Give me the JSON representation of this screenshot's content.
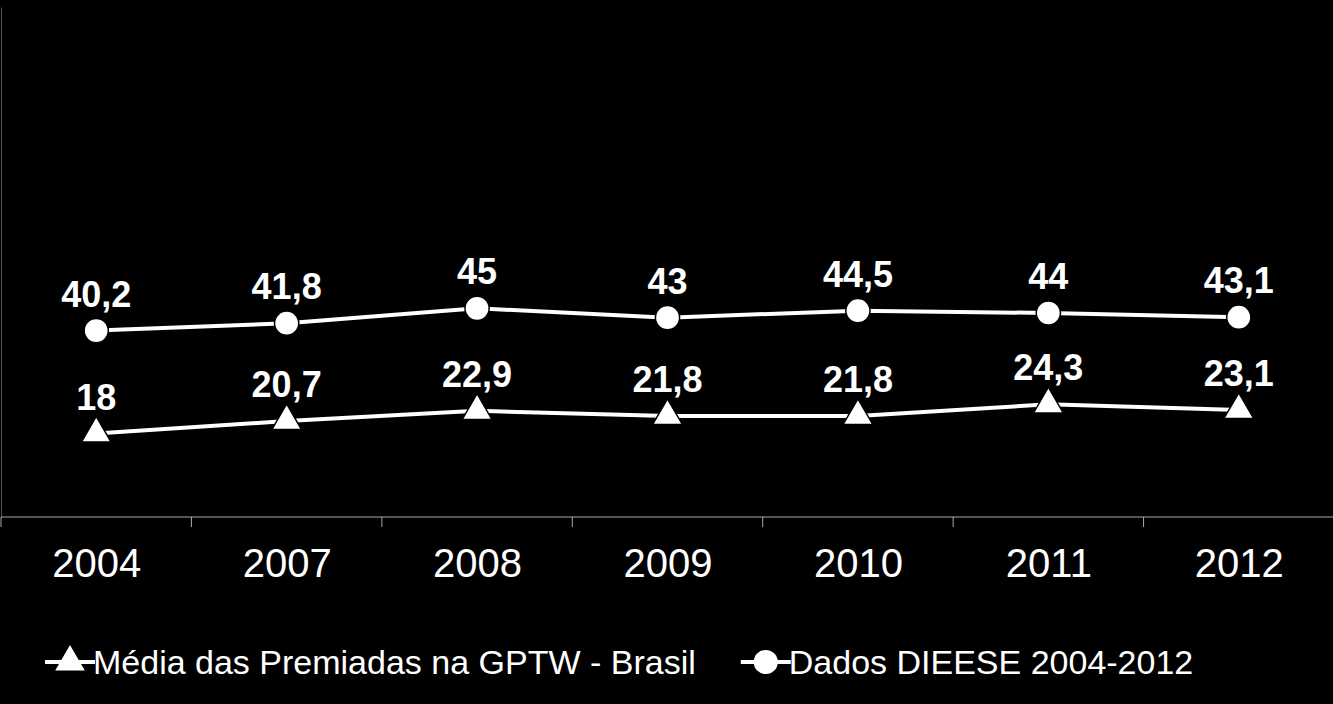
{
  "chart_data": {
    "type": "line",
    "categories": [
      "2004",
      "2007",
      "2008",
      "2009",
      "2010",
      "2011",
      "2012"
    ],
    "series": [
      {
        "name": "Média das Premiadas na GPTW - Brasil",
        "color": "#ffffff",
        "marker": "triangle",
        "values": [
          18,
          20.7,
          22.9,
          21.8,
          21.8,
          24.3,
          23.1
        ],
        "value_labels": [
          "18",
          "20,7",
          "22,9",
          "21,8",
          "21,8",
          "24,3",
          "23,1"
        ]
      },
      {
        "name": "Dados DIEESE 2004-2012",
        "color": "#ffffff",
        "marker": "circle",
        "values": [
          40.2,
          41.8,
          45,
          43,
          44.5,
          44,
          43.1
        ],
        "value_labels": [
          "40,2",
          "41,8",
          "45",
          "43",
          "44,5",
          "44",
          "43,1"
        ]
      }
    ],
    "ylim": [
      0,
      110
    ],
    "data_labels": true,
    "tick_labels": "x",
    "legend": "bottom",
    "grid": false
  }
}
